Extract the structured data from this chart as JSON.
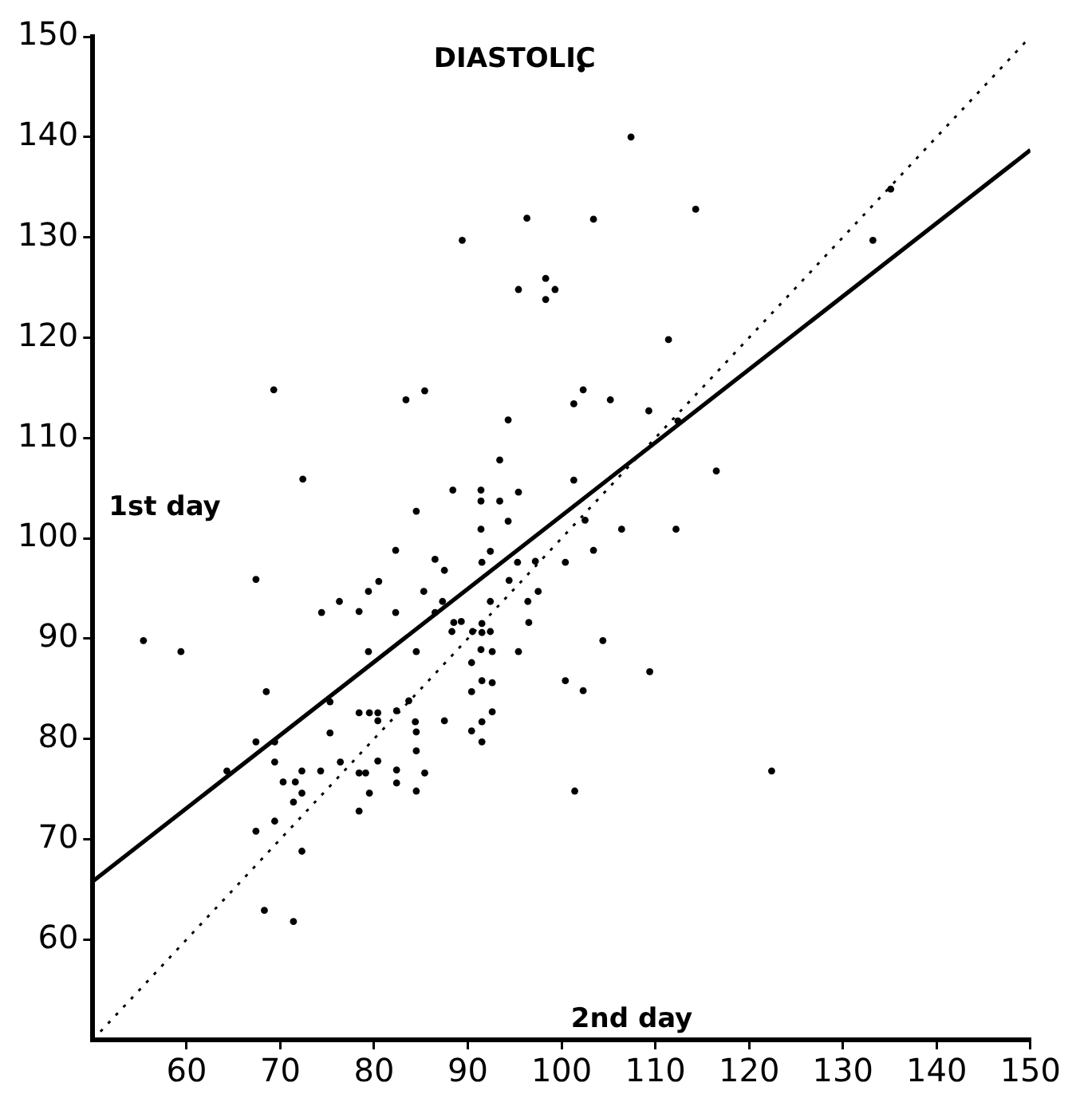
{
  "chart_data": {
    "type": "scatter",
    "title": "DIASTOLIC",
    "xlabel": "2nd day",
    "ylabel": "1st day",
    "xlim": [
      50,
      150
    ],
    "ylim": [
      50,
      150
    ],
    "xticks": [
      60,
      70,
      80,
      90,
      100,
      110,
      120,
      130,
      140,
      150
    ],
    "yticks": [
      60,
      70,
      80,
      90,
      100,
      110,
      120,
      130,
      140,
      150
    ],
    "grid": false,
    "legend": false,
    "series": [
      {
        "type": "scatter",
        "color": "#000000",
        "marker": "circle",
        "x": [
          69.3,
          72.4,
          83.4,
          85.4,
          89.4,
          96.3,
          95.4,
          98.3,
          98.3,
          99.3,
          94.3,
          93.4,
          88.4,
          91.4,
          91.4,
          93.4,
          95.4,
          84.5,
          91.4,
          94.3,
          102.1,
          107.4,
          103.4,
          114.3,
          135.1,
          133.2,
          111.4,
          102.3,
          101.3,
          105.2,
          109.3,
          112.4,
          101.3,
          116.5,
          102.5,
          106.4,
          112.2,
          103.4,
          100.4,
          97.5,
          104.4,
          100.4,
          102.3,
          109.4,
          122.4,
          101.4,
          67.4,
          55.4,
          59.4,
          68.5,
          64.3,
          67.4,
          69.4,
          69.4,
          70.3,
          71.6,
          72.3,
          72.3,
          71.4,
          69.4,
          67.4,
          72.3,
          68.3,
          71.4,
          74.4,
          76.3,
          78.4,
          79.4,
          79.4,
          75.3,
          75.3,
          74.3,
          76.4,
          78.4,
          79.5,
          78.4,
          79.5,
          78.4,
          82.3,
          92.4,
          86.5,
          87.5,
          91.5,
          80.5,
          82.3,
          85.3,
          87.3,
          86.5,
          88.5,
          89.3,
          90.5,
          91.5,
          91.5,
          92.4,
          88.3,
          92.4,
          96.4,
          94.4,
          95.3,
          97.2,
          96.5,
          84.5,
          91.4,
          92.6,
          95.4,
          90.4,
          91.5,
          92.6,
          90.4,
          80.4,
          82.4,
          83.7,
          80.4,
          84.4,
          87.5,
          92.6,
          91.5,
          90.4,
          91.5,
          84.5,
          84.5,
          80.4,
          79.1,
          82.4,
          82.4,
          85.4,
          84.5
        ],
        "values": [
          114.8,
          105.9,
          113.8,
          114.7,
          129.7,
          131.9,
          124.8,
          125.9,
          123.8,
          124.8,
          111.8,
          107.8,
          104.8,
          104.8,
          103.7,
          103.7,
          104.6,
          102.7,
          100.9,
          101.7,
          146.8,
          140.0,
          131.8,
          132.8,
          134.8,
          129.7,
          119.8,
          114.8,
          113.4,
          113.8,
          112.7,
          111.7,
          105.8,
          106.7,
          101.8,
          100.9,
          100.9,
          98.8,
          97.6,
          94.7,
          89.8,
          85.8,
          84.8,
          86.7,
          76.8,
          74.8,
          95.9,
          89.8,
          88.7,
          84.7,
          76.8,
          79.7,
          79.7,
          77.7,
          75.7,
          75.7,
          76.8,
          74.6,
          73.7,
          71.8,
          70.8,
          68.8,
          62.9,
          61.8,
          92.6,
          93.7,
          92.7,
          94.7,
          88.7,
          83.7,
          80.6,
          76.8,
          77.7,
          82.6,
          82.6,
          76.6,
          74.6,
          72.8,
          98.8,
          98.7,
          97.9,
          96.8,
          97.6,
          95.7,
          92.6,
          94.7,
          93.7,
          92.6,
          91.6,
          91.7,
          90.7,
          91.5,
          90.6,
          90.7,
          90.7,
          93.7,
          93.7,
          95.8,
          97.6,
          97.7,
          91.6,
          88.7,
          88.9,
          88.7,
          88.7,
          87.6,
          85.8,
          85.6,
          84.7,
          82.6,
          82.8,
          83.8,
          81.8,
          81.7,
          81.8,
          82.7,
          81.7,
          80.8,
          79.7,
          80.7,
          78.8,
          77.8,
          76.6,
          76.9,
          75.6,
          76.6,
          74.8
        ]
      },
      {
        "type": "line",
        "color": "#000000",
        "line_style": "solid",
        "marker": "none",
        "x": [
          50,
          150
        ],
        "values": [
          65.8,
          138.7
        ]
      },
      {
        "type": "line",
        "color": "#000000",
        "line_style": "dotted",
        "marker": "none",
        "x": [
          50,
          150
        ],
        "values": [
          50,
          150
        ]
      }
    ]
  }
}
